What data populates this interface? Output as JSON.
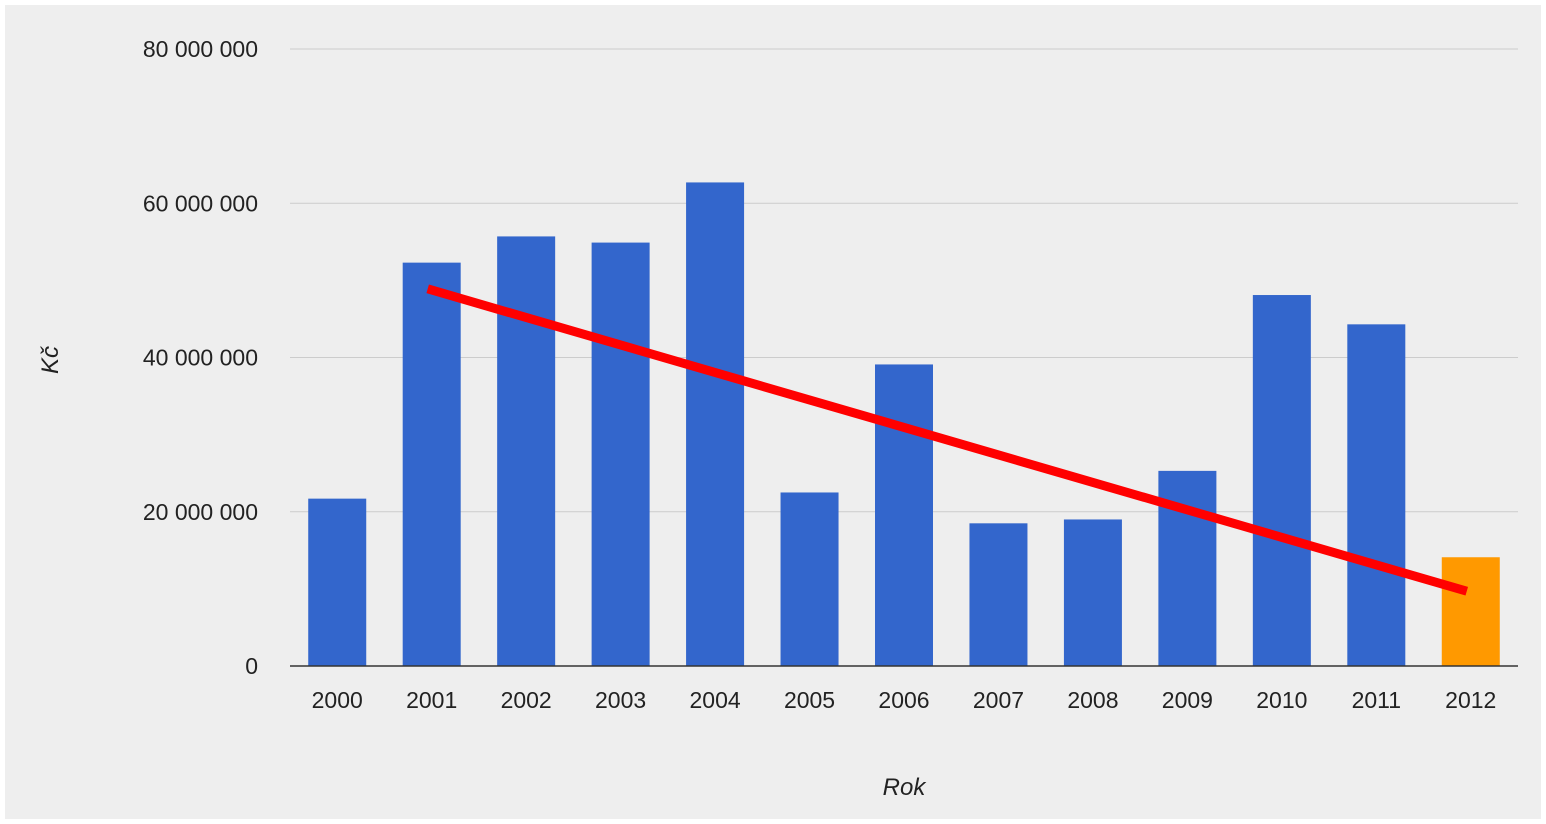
{
  "chart_data": {
    "type": "bar",
    "title": "",
    "xlabel": "Rok",
    "ylabel": "Kč",
    "ylim": [
      0,
      80000000
    ],
    "y_ticks": [
      0,
      20000000,
      40000000,
      60000000,
      80000000
    ],
    "y_tick_labels": [
      "0",
      "20 000 000",
      "40 000 000",
      "60 000 000",
      "80 000 000"
    ],
    "grid": true,
    "legend": "none",
    "categories": [
      "2000",
      "2001",
      "2002",
      "2003",
      "2004",
      "2005",
      "2006",
      "2007",
      "2008",
      "2009",
      "2010",
      "2011",
      "2012"
    ],
    "values": [
      21700000,
      52300000,
      55700000,
      54900000,
      62700000,
      22500000,
      39100000,
      18500000,
      19000000,
      25300000,
      48100000,
      44300000,
      14100000
    ],
    "bar_colors": [
      "#3366cc",
      "#3366cc",
      "#3366cc",
      "#3366cc",
      "#3366cc",
      "#3366cc",
      "#3366cc",
      "#3366cc",
      "#3366cc",
      "#3366cc",
      "#3366cc",
      "#3366cc",
      "#ff9900"
    ],
    "trend_line": {
      "color": "#ff0000",
      "start": {
        "x": "2001",
        "y": 48900000
      },
      "end": {
        "x": "2012",
        "y": 9700000
      }
    }
  }
}
